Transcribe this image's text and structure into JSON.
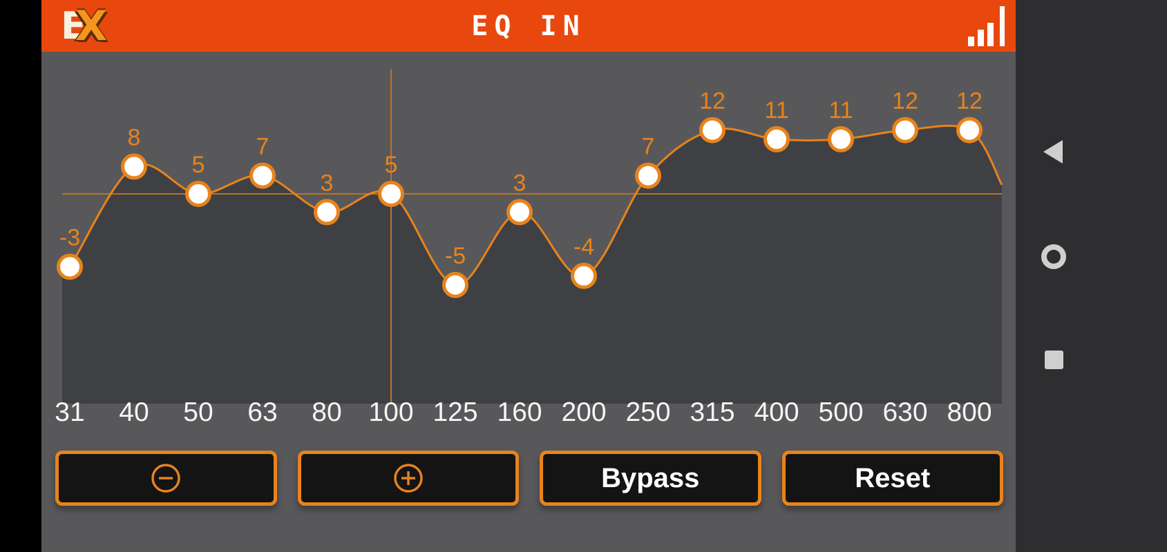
{
  "header": {
    "logo_e": "E",
    "logo_x": "X",
    "title": "EQ IN"
  },
  "chart_data": {
    "type": "line",
    "title": "",
    "xlabel": "",
    "ylabel": "",
    "categories": [
      "31",
      "40",
      "50",
      "63",
      "80",
      "100",
      "125",
      "160",
      "200",
      "250",
      "315",
      "400",
      "500",
      "630",
      "800"
    ],
    "values": [
      -3,
      8,
      5,
      7,
      3,
      5,
      -5,
      3,
      -4,
      7,
      12,
      11,
      11,
      12,
      12
    ],
    "value_labels": [
      "-3",
      "8",
      "5",
      "7",
      "3",
      "5",
      "-5",
      "3",
      "-4",
      "7",
      "12",
      "11",
      "11",
      "12",
      "12"
    ],
    "selected_band": "100",
    "selected_value": 5,
    "ylim": [
      -18,
      19
    ],
    "grid": false,
    "legend": false,
    "colors": {
      "curve": "#e8831c",
      "point_fill": "#ffffff",
      "point_stroke": "#e8831c",
      "area_fill": "#3f4044",
      "plot_background": "#58585a",
      "value_label": "#e8831c",
      "axis_label": "#f5f5f5",
      "crosshair": "#bc7322"
    }
  },
  "controls": {
    "minus_icon": "minus-circle-icon",
    "plus_icon": "plus-circle-icon",
    "bypass_label": "Bypass",
    "reset_label": "Reset"
  },
  "nav_bar": {
    "back_icon": "back-triangle-icon",
    "home_icon": "home-circle-icon",
    "recents_icon": "recents-square-icon"
  },
  "header_icons": {
    "signal_icon": "signal-bars-icon"
  }
}
